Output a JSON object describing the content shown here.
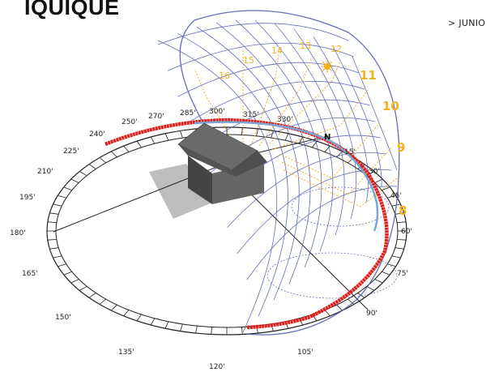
{
  "header": {
    "title": "IQUIQUE",
    "month": "> JUNIO"
  },
  "diagram": {
    "north_label": "N",
    "azimuth_labels": [
      "15'",
      "30'",
      "45'",
      "60'",
      "75'",
      "90'",
      "105'",
      "120'",
      "135'",
      "150'",
      "165'",
      "180'",
      "195'",
      "210'",
      "225'",
      "240'",
      "250'",
      "270'",
      "285'",
      "300'",
      "315'",
      "330'"
    ],
    "hour_labels_right": [
      "8",
      "9",
      "10",
      "11"
    ],
    "hour_labels_top": [
      "12",
      "13",
      "14",
      "15",
      "16"
    ],
    "colors": {
      "grid": "#4a55b0",
      "sun_path": "#e0201b",
      "hour_lines": "#f2b21a",
      "house": "#555555",
      "shadow": "#bdbdbd",
      "ring": "#222222"
    }
  }
}
